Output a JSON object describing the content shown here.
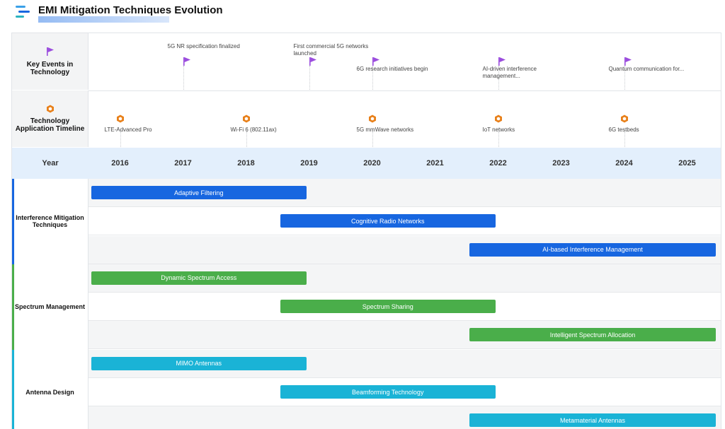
{
  "page": {
    "title": "EMI Mitigation Techniques Evolution"
  },
  "colors": {
    "event_flag": "#9b4dde",
    "app_hex": "#e8801a",
    "interference": "#1766e0",
    "spectrum": "#4aae4a",
    "antenna": "#1ab3d6"
  },
  "rows": {
    "events_label": "Key Events in Technology",
    "apps_label": "Technology Application Timeline",
    "year_label": "Year"
  },
  "years": [
    "2016",
    "2017",
    "2018",
    "2019",
    "2020",
    "2021",
    "2022",
    "2023",
    "2024",
    "2025"
  ],
  "events": [
    {
      "year": 2017,
      "text": "5G NR specification finalized"
    },
    {
      "year": 2019,
      "text": "First commercial 5G networks launched"
    },
    {
      "year": 2020,
      "text": "6G research initiatives begin"
    },
    {
      "year": 2022,
      "text": "AI-driven interference management..."
    },
    {
      "year": 2024,
      "text": "Quantum communication for..."
    }
  ],
  "applications": [
    {
      "year": 2016,
      "text": "LTE-Advanced Pro"
    },
    {
      "year": 2018,
      "text": "Wi-Fi 6 (802.11ax)"
    },
    {
      "year": 2020,
      "text": "5G mmWave networks"
    },
    {
      "year": 2022,
      "text": "IoT networks"
    },
    {
      "year": 2024,
      "text": "6G testbeds"
    }
  ],
  "groups": [
    {
      "label": "Interference Mitigation Techniques",
      "color": "#1766e0",
      "bars": [
        {
          "label": "Adaptive Filtering",
          "start": 2016,
          "end": 2019.5
        },
        {
          "label": "Cognitive Radio Networks",
          "start": 2019,
          "end": 2022.5
        },
        {
          "label": "AI-based Interference Management",
          "start": 2022,
          "end": 2026
        }
      ]
    },
    {
      "label": "Spectrum Management",
      "color": "#4aae4a",
      "bars": [
        {
          "label": "Dynamic Spectrum Access",
          "start": 2016,
          "end": 2019.5
        },
        {
          "label": "Spectrum Sharing",
          "start": 2019,
          "end": 2022.5
        },
        {
          "label": "Intelligent Spectrum Allocation",
          "start": 2022,
          "end": 2026
        }
      ]
    },
    {
      "label": "Antenna Design",
      "color": "#1ab3d6",
      "bars": [
        {
          "label": "MIMO Antennas",
          "start": 2016,
          "end": 2019.5
        },
        {
          "label": "Beamforming Technology",
          "start": 2019,
          "end": 2022.5
        },
        {
          "label": "Metamaterial Antennas",
          "start": 2022,
          "end": 2026
        }
      ]
    }
  ]
}
